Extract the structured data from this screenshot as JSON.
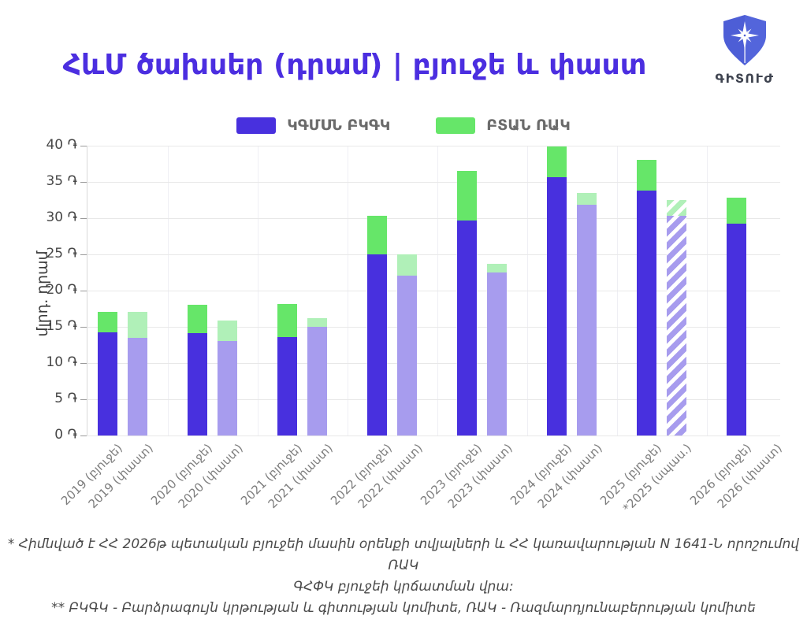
{
  "title": "ՀևՄ ծախսեր (դրամ) | բյուջե և փաստ",
  "logo": {
    "text": "ԳԻՏՈՒԺ"
  },
  "legend": [
    {
      "label": "ԿԳՄՍՆ ԲԿԳԿ",
      "color": "#4830de"
    },
    {
      "label": "ԲՏԱՆ ՌԱԿ",
      "color": "#66e669"
    }
  ],
  "colors": {
    "series1_budget": "#4830de",
    "series1_actual": "#a79cee",
    "series2_budget": "#66e669",
    "series2_actual": "#b0f0b8",
    "hatch_white": "#ffffff",
    "grid": "#e8e8e8",
    "separator": "#efeff4",
    "axis": "#d9d9d9",
    "tick": "#9a9a9a",
    "title_accent": "#4b2ee0"
  },
  "chart_data": {
    "type": "bar",
    "stacked": true,
    "title": "ՀևՄ ծախսեր (դրամ) | բյուջե և փաստ",
    "xlabel": "",
    "ylabel": "մլրդ. դրամ",
    "ylim": [
      0,
      40
    ],
    "ytick_step": 5,
    "yticks": [
      "0 ֏",
      "5 ֏",
      "10 ֏",
      "15 ֏",
      "20 ֏",
      "25 ֏",
      "30 ֏",
      "35 ֏",
      "40 ֏"
    ],
    "grid": "horizontal",
    "legend_position": "top-center",
    "categories": [
      "2019 (բյուջե)",
      "2019 (փաստ)",
      "2020 (բյուջե)",
      "2020 (փաստ)",
      "2021 (բյուջե)",
      "2021 (փաստ)",
      "2022 (բյուջե)",
      "2022 (փաստ)",
      "2023 (բյուջե)",
      "2023 (փաստ)",
      "2024 (բյուջե)",
      "2024 (փաստ)",
      "2025 (բյուջե)",
      "*2025 (սպաս.)",
      "2026 (բյուջե)",
      "2026 (փաստ)"
    ],
    "variants": [
      "budget",
      "actual",
      "budget",
      "actual",
      "budget",
      "actual",
      "budget",
      "actual",
      "budget",
      "actual",
      "budget",
      "actual",
      "budget",
      "expected",
      "budget",
      "none"
    ],
    "series": [
      {
        "name": "ԿԳՄՍՆ ԲԿԳԿ",
        "values": [
          14.2,
          13.5,
          14.1,
          13.0,
          13.6,
          15.0,
          25.0,
          22.1,
          29.7,
          22.5,
          35.7,
          31.9,
          33.8,
          30.3,
          29.2,
          null
        ]
      },
      {
        "name": "ԲՏԱՆ ՌԱԿ",
        "values": [
          2.9,
          3.6,
          3.9,
          2.9,
          4.6,
          1.2,
          5.3,
          2.9,
          6.8,
          1.2,
          4.2,
          1.6,
          4.2,
          2.2,
          3.6,
          null
        ]
      }
    ]
  },
  "footnotes": [
    "* Հիմնված է ՀՀ 2026թ պետական բյուջեի մասին օրենքի տվյալների և ՀՀ կառավարության N 1641-Ն որոշումով ՌԱԿ",
    "ԳՀՓԿ բյուջեի կրճատման վրա:",
    "** ԲԿԳԿ - Բարձրագույն կրթության և գիտության կոմիտե, ՌԱԿ - Ռազմարդյունաբերության կոմիտե"
  ]
}
